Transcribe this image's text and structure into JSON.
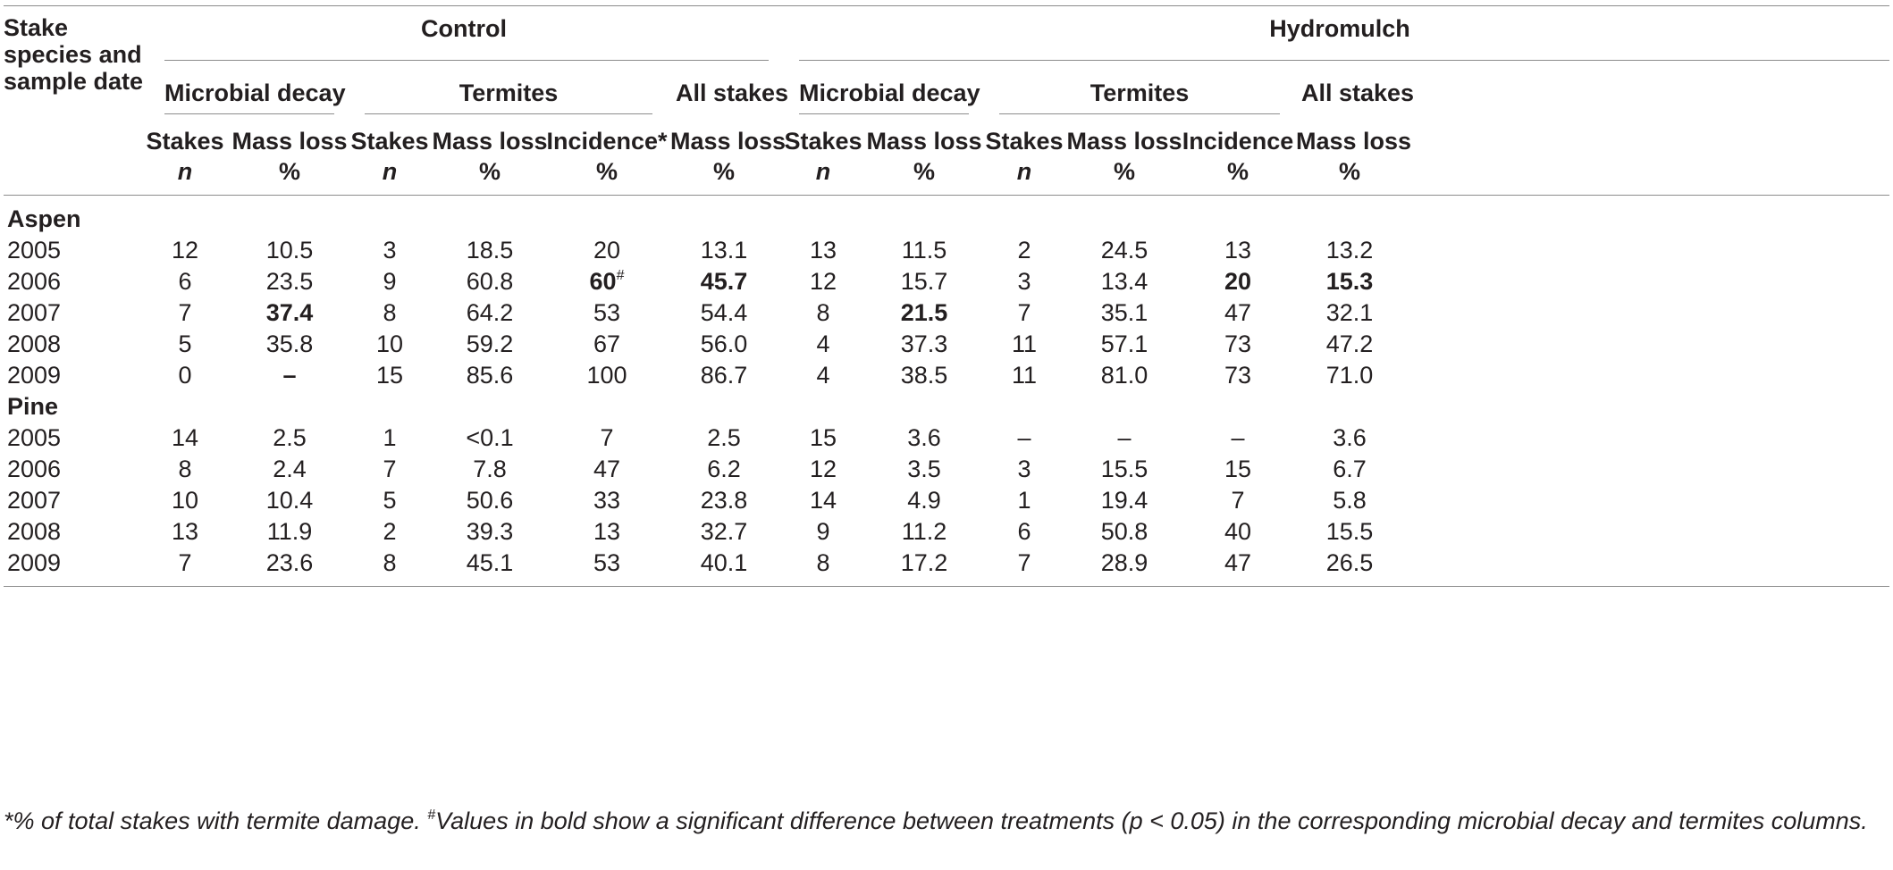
{
  "header": {
    "row_label": "Stake species and sample date",
    "groups": [
      "Control",
      "Hydromulch"
    ],
    "subgroups": [
      "Microbial decay",
      "Termites",
      "All stakes"
    ],
    "columns": [
      {
        "name": "Stakes",
        "unit": "n"
      },
      {
        "name": "Mass loss",
        "unit": "%"
      },
      {
        "name": "Stakes",
        "unit": "n"
      },
      {
        "name": "Mass loss",
        "unit": "%"
      },
      {
        "name": "Incidence*",
        "unit": "%"
      },
      {
        "name": "Mass loss",
        "unit": "%"
      },
      {
        "name": "Stakes",
        "unit": "n"
      },
      {
        "name": "Mass loss",
        "unit": "%"
      },
      {
        "name": "Stakes",
        "unit": "n"
      },
      {
        "name": "Mass loss",
        "unit": "%"
      },
      {
        "name": "Incidence",
        "unit": "%"
      },
      {
        "name": "Mass loss",
        "unit": "%"
      }
    ]
  },
  "sections": [
    {
      "name": "Aspen",
      "rows": [
        {
          "date": "2005",
          "cells": [
            "12",
            "10.5",
            "3",
            "18.5",
            "20",
            "13.1",
            "13",
            "11.5",
            "2",
            "24.5",
            "13",
            "13.2"
          ],
          "bold": []
        },
        {
          "date": "2006",
          "cells": [
            "6",
            "23.5",
            "9",
            "60.8",
            "60",
            "45.7",
            "12",
            "15.7",
            "3",
            "13.4",
            "20",
            "15.3"
          ],
          "bold": [
            4,
            5,
            10,
            11
          ],
          "sup": {
            "4": "#"
          }
        },
        {
          "date": "2007",
          "cells": [
            "7",
            "37.4",
            "8",
            "64.2",
            "53",
            "54.4",
            "8",
            "21.5",
            "7",
            "35.1",
            "47",
            "32.1"
          ],
          "bold": [
            1,
            7
          ]
        },
        {
          "date": "2008",
          "cells": [
            "5",
            "35.8",
            "10",
            "59.2",
            "67",
            "56.0",
            "4",
            "37.3",
            "11",
            "57.1",
            "73",
            "47.2"
          ],
          "bold": []
        },
        {
          "date": "2009",
          "cells": [
            "0",
            "–",
            "15",
            "85.6",
            "100",
            "86.7",
            "4",
            "38.5",
            "11",
            "81.0",
            "73",
            "71.0"
          ],
          "bold": [
            1
          ]
        }
      ]
    },
    {
      "name": "Pine",
      "rows": [
        {
          "date": "2005",
          "cells": [
            "14",
            "2.5",
            "1",
            "<0.1",
            "7",
            "2.5",
            "15",
            "3.6",
            "–",
            "–",
            "–",
            "3.6"
          ],
          "bold": []
        },
        {
          "date": "2006",
          "cells": [
            "8",
            "2.4",
            "7",
            "7.8",
            "47",
            "6.2",
            "12",
            "3.5",
            "3",
            "15.5",
            "15",
            "6.7"
          ],
          "bold": []
        },
        {
          "date": "2007",
          "cells": [
            "10",
            "10.4",
            "5",
            "50.6",
            "33",
            "23.8",
            "14",
            "4.9",
            "1",
            "19.4",
            "7",
            "5.8"
          ],
          "bold": []
        },
        {
          "date": "2008",
          "cells": [
            "13",
            "11.9",
            "2",
            "39.3",
            "13",
            "32.7",
            "9",
            "11.2",
            "6",
            "50.8",
            "40",
            "15.5"
          ],
          "bold": []
        },
        {
          "date": "2009",
          "cells": [
            "7",
            "23.6",
            "8",
            "45.1",
            "53",
            "40.1",
            "8",
            "17.2",
            "7",
            "28.9",
            "47",
            "26.5"
          ],
          "bold": []
        }
      ]
    }
  ],
  "footnote": {
    "marker1": "*",
    "text1": "% of total stakes with termite damage. ",
    "marker2": "#",
    "text2": "Values in bold show a significant difference between treatments (p < 0.05) in the corresponding microbial decay and termites columns."
  }
}
